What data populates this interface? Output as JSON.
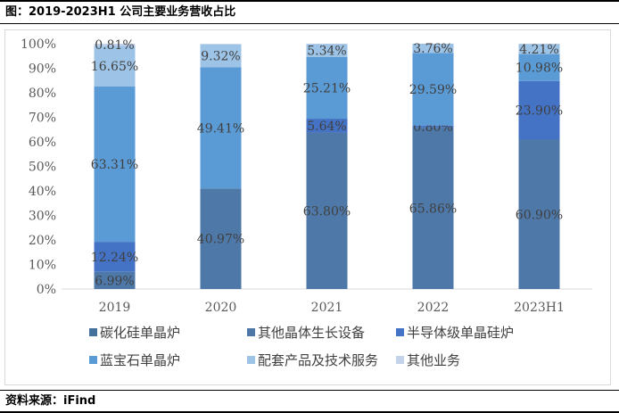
{
  "title": "图：2019-2023H1 公司主要业务营收占比",
  "source": "资料来源：iFind",
  "chart_data": {
    "type": "bar",
    "stacked": true,
    "categories": [
      "2019",
      "2020",
      "2021",
      "2022",
      "2023H1"
    ],
    "ylim": [
      0,
      100
    ],
    "yticks": [
      "0%",
      "10%",
      "20%",
      "30%",
      "40%",
      "50%",
      "60%",
      "70%",
      "80%",
      "90%",
      "100%"
    ],
    "legend_position": "bottom",
    "series": [
      {
        "name": "碳化硅单晶炉",
        "color": "#44719c",
        "values": [
          0,
          0,
          0,
          0,
          0
        ],
        "labels": [
          "",
          "",
          "",
          "",
          ""
        ]
      },
      {
        "name": "其他晶体生长设备",
        "color": "#4e78a8",
        "values": [
          6.99,
          40.97,
          63.8,
          65.86,
          60.9
        ],
        "labels": [
          "6.99%",
          "40.97%",
          "63.80%",
          "65.86%",
          "60.90%"
        ]
      },
      {
        "name": "半导体级单晶硅炉",
        "color": "#4472c4",
        "values": [
          12.24,
          0,
          5.64,
          0.8,
          23.9
        ],
        "labels": [
          "12.24%",
          "",
          "5.64%",
          "0.80%",
          "23.90%"
        ]
      },
      {
        "name": "蓝宝石单晶炉",
        "color": "#5b9bd5",
        "values": [
          63.31,
          49.41,
          25.21,
          29.59,
          10.98
        ],
        "labels": [
          "63.31%",
          "49.41%",
          "25.21%",
          "29.59%",
          "10.98%"
        ]
      },
      {
        "name": "配套产品及技术服务",
        "color": "#9dc3e6",
        "values": [
          16.65,
          9.32,
          5.34,
          3.76,
          4.21
        ],
        "labels": [
          "16.65%",
          "9.32%",
          "5.34%",
          "3.76%",
          "4.21%"
        ]
      },
      {
        "name": "其他业务",
        "color": "#c5d3ea",
        "values": [
          0.81,
          0.3,
          0.01,
          0.0,
          0.01
        ],
        "labels": [
          "0.81%",
          "",
          "",
          "",
          ""
        ]
      }
    ]
  }
}
